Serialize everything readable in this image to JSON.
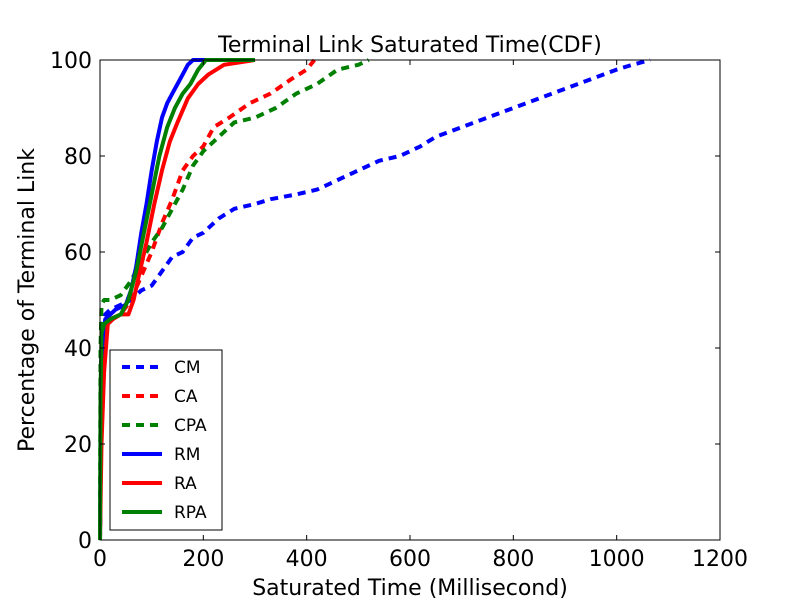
{
  "chart_data": {
    "type": "line",
    "title": "Terminal Link Saturated Time(CDF)",
    "xlabel": "Saturated Time (Millisecond)",
    "ylabel": "Percentage of Terminal Link",
    "xlim": [
      0,
      1200
    ],
    "ylim": [
      0,
      100
    ],
    "xticks": [
      0,
      200,
      400,
      600,
      800,
      1000,
      1200
    ],
    "yticks": [
      0,
      20,
      40,
      60,
      80,
      100
    ],
    "xtick_labels": [
      "0",
      "200",
      "400",
      "600",
      "800",
      "1000",
      "1200"
    ],
    "ytick_labels": [
      "0",
      "20",
      "40",
      "60",
      "80",
      "100"
    ],
    "grid": false,
    "legend_position": "lower-left",
    "series": [
      {
        "name": "CM",
        "color": "#0000ff",
        "style": "dashed",
        "points": [
          [
            0,
            0
          ],
          [
            2,
            35
          ],
          [
            4,
            45
          ],
          [
            10,
            47
          ],
          [
            20,
            48
          ],
          [
            40,
            49
          ],
          [
            60,
            50
          ],
          [
            80,
            52
          ],
          [
            100,
            53
          ],
          [
            120,
            56
          ],
          [
            140,
            59
          ],
          [
            160,
            60
          ],
          [
            180,
            63
          ],
          [
            200,
            64
          ],
          [
            230,
            67
          ],
          [
            260,
            69
          ],
          [
            300,
            70
          ],
          [
            330,
            71
          ],
          [
            380,
            72
          ],
          [
            420,
            73
          ],
          [
            460,
            75
          ],
          [
            500,
            77
          ],
          [
            540,
            79
          ],
          [
            580,
            80
          ],
          [
            620,
            82
          ],
          [
            650,
            84
          ],
          [
            700,
            86
          ],
          [
            750,
            88
          ],
          [
            800,
            90
          ],
          [
            850,
            92
          ],
          [
            900,
            94
          ],
          [
            950,
            96
          ],
          [
            1000,
            98
          ],
          [
            1030,
            99
          ],
          [
            1065,
            100
          ]
        ]
      },
      {
        "name": "CA",
        "color": "#ff0000",
        "style": "dashed",
        "points": [
          [
            0,
            0
          ],
          [
            3,
            30
          ],
          [
            6,
            40
          ],
          [
            10,
            45
          ],
          [
            20,
            46
          ],
          [
            40,
            47
          ],
          [
            60,
            50
          ],
          [
            80,
            55
          ],
          [
            100,
            60
          ],
          [
            120,
            66
          ],
          [
            140,
            71
          ],
          [
            160,
            77
          ],
          [
            180,
            80
          ],
          [
            200,
            82
          ],
          [
            220,
            86
          ],
          [
            250,
            88
          ],
          [
            290,
            91
          ],
          [
            330,
            93
          ],
          [
            370,
            96
          ],
          [
            400,
            98
          ],
          [
            415,
            100
          ]
        ]
      },
      {
        "name": "CPA",
        "color": "#008000",
        "style": "dashed",
        "points": [
          [
            0,
            0
          ],
          [
            1,
            40
          ],
          [
            3,
            49
          ],
          [
            8,
            50
          ],
          [
            20,
            50
          ],
          [
            40,
            51
          ],
          [
            60,
            54
          ],
          [
            80,
            58
          ],
          [
            100,
            62
          ],
          [
            120,
            65
          ],
          [
            140,
            69
          ],
          [
            160,
            73
          ],
          [
            180,
            78
          ],
          [
            200,
            81
          ],
          [
            230,
            84
          ],
          [
            260,
            87
          ],
          [
            300,
            88
          ],
          [
            340,
            90
          ],
          [
            380,
            93
          ],
          [
            420,
            95
          ],
          [
            460,
            98
          ],
          [
            500,
            99
          ],
          [
            520,
            100
          ]
        ]
      },
      {
        "name": "RM",
        "color": "#0000ff",
        "style": "solid",
        "points": [
          [
            0,
            0
          ],
          [
            2,
            30
          ],
          [
            5,
            40
          ],
          [
            10,
            46
          ],
          [
            20,
            47
          ],
          [
            30,
            48
          ],
          [
            50,
            49
          ],
          [
            60,
            52
          ],
          [
            70,
            57
          ],
          [
            80,
            64
          ],
          [
            90,
            70
          ],
          [
            100,
            77
          ],
          [
            110,
            83
          ],
          [
            120,
            88
          ],
          [
            130,
            91
          ],
          [
            140,
            93
          ],
          [
            150,
            95
          ],
          [
            160,
            97
          ],
          [
            170,
            99
          ],
          [
            180,
            100
          ],
          [
            300,
            100
          ]
        ]
      },
      {
        "name": "RA",
        "color": "#ff0000",
        "style": "solid",
        "points": [
          [
            0,
            0
          ],
          [
            3,
            20
          ],
          [
            8,
            35
          ],
          [
            15,
            45
          ],
          [
            25,
            46
          ],
          [
            40,
            47
          ],
          [
            55,
            47
          ],
          [
            65,
            50
          ],
          [
            75,
            55
          ],
          [
            90,
            62
          ],
          [
            105,
            70
          ],
          [
            120,
            77
          ],
          [
            135,
            83
          ],
          [
            150,
            87
          ],
          [
            170,
            92
          ],
          [
            190,
            95
          ],
          [
            210,
            97
          ],
          [
            240,
            99
          ],
          [
            270,
            99.5
          ],
          [
            300,
            100
          ]
        ]
      },
      {
        "name": "RPA",
        "color": "#008000",
        "style": "solid",
        "points": [
          [
            0,
            0
          ],
          [
            1,
            30
          ],
          [
            3,
            43
          ],
          [
            8,
            45
          ],
          [
            20,
            46
          ],
          [
            40,
            47
          ],
          [
            55,
            50
          ],
          [
            70,
            56
          ],
          [
            85,
            64
          ],
          [
            100,
            72
          ],
          [
            115,
            80
          ],
          [
            130,
            86
          ],
          [
            145,
            90
          ],
          [
            160,
            93
          ],
          [
            175,
            95
          ],
          [
            190,
            98
          ],
          [
            205,
            100
          ],
          [
            300,
            100
          ]
        ]
      }
    ]
  }
}
